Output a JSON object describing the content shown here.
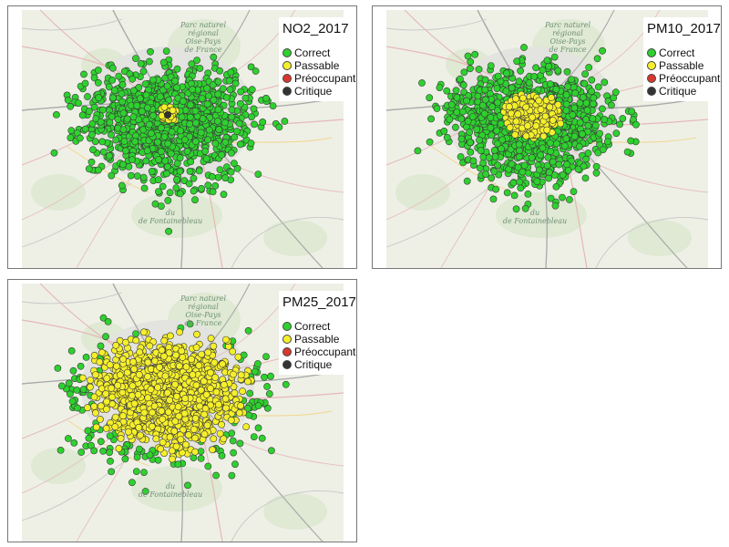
{
  "map_labels": {
    "park": "Parc naturel\nrégional\nOise-Pays\nde France",
    "fontaine": "du\nde Fontainebleau"
  },
  "legend_items": [
    {
      "label": "Correct",
      "color": "#2ed12e"
    },
    {
      "label": "Passable",
      "color": "#f5ef2a"
    },
    {
      "label": "Préoccupant",
      "color": "#d9382f"
    },
    {
      "label": "Critique",
      "color": "#333333"
    }
  ],
  "panels": [
    {
      "title": "NO2_2017",
      "dominant": "Correct",
      "yellow_zone": "center-small",
      "critical_points": 1
    },
    {
      "title": "PM10_2017",
      "dominant": "Correct",
      "yellow_zone": "center-medium",
      "critical_points": 0
    },
    {
      "title": "PM25_2017",
      "dominant": "Passable",
      "yellow_zone": "center-large",
      "critical_points": 0
    }
  ]
}
